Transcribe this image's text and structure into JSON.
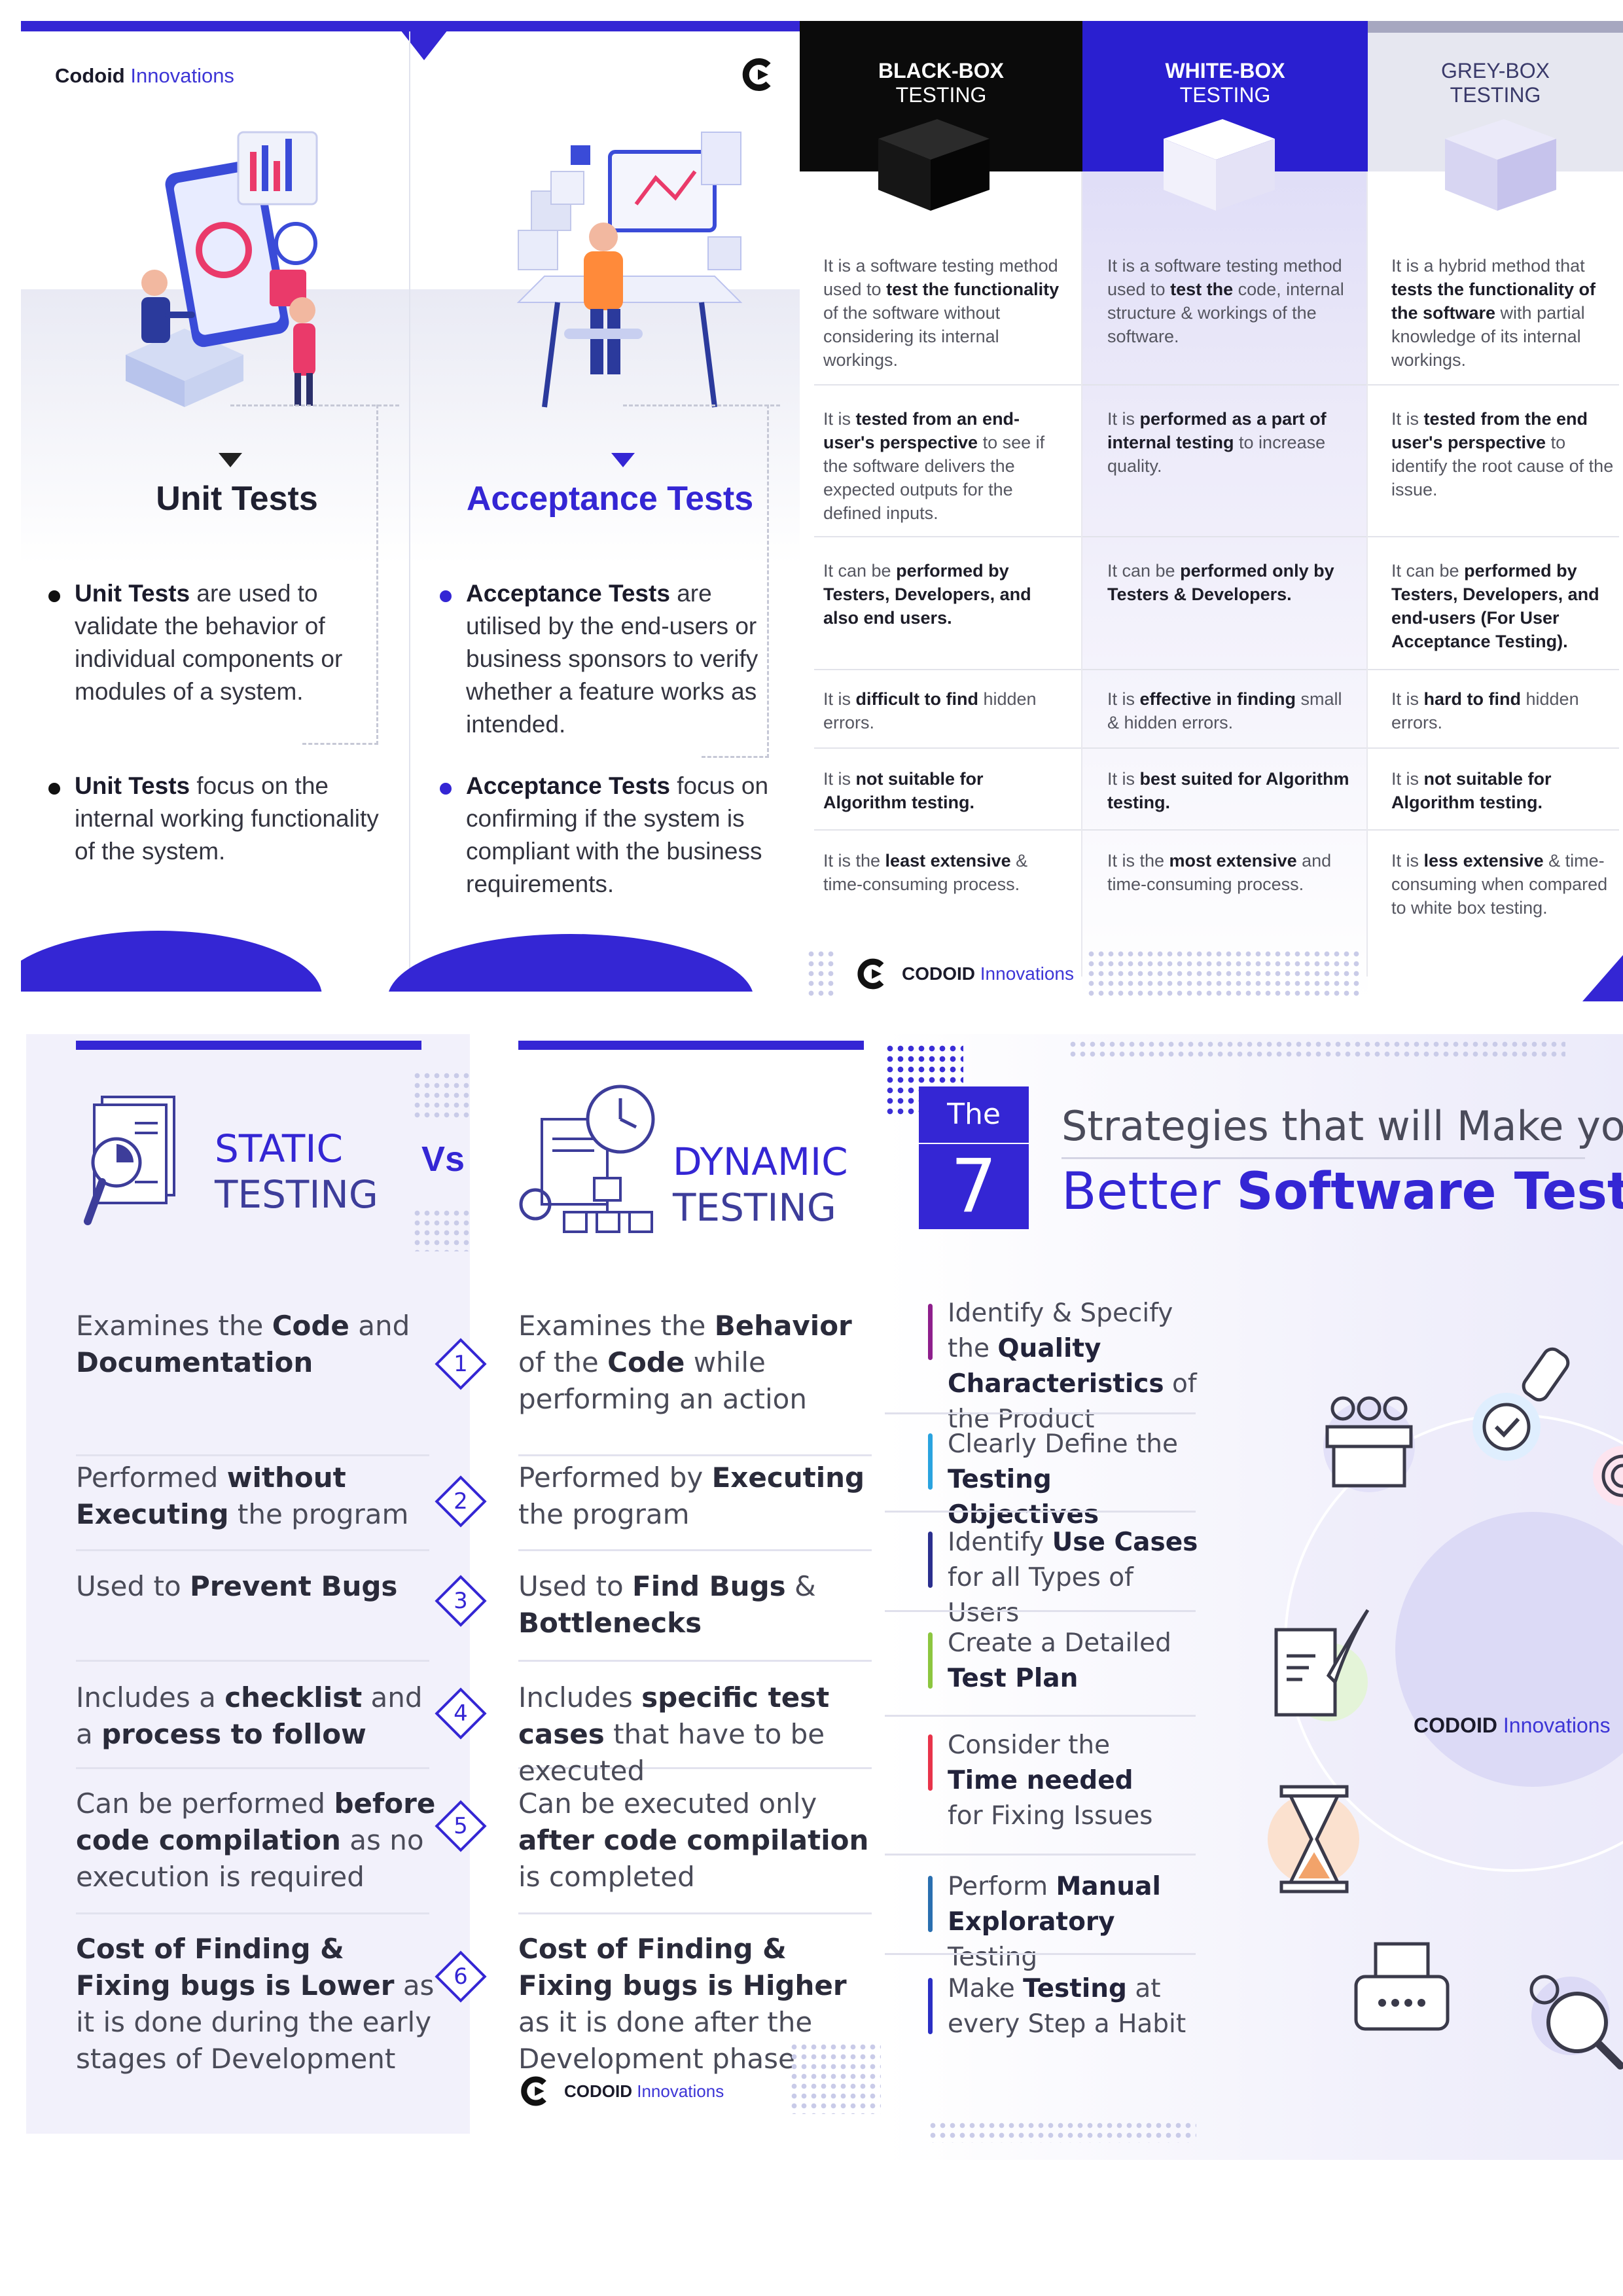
{
  "panel_unit_acceptance": {
    "logo_bold": "Codoid",
    "logo_light": "Innovations",
    "unit": {
      "heading": "Unit Tests",
      "bullet1_bold": "Unit Tests",
      "bullet1_rest": "are used to validate the behavior of individual components or modules of a system.",
      "bullet2_bold": "Unit Tests",
      "bullet2_rest": "focus on the internal working functionality of the system."
    },
    "acceptance": {
      "heading": "Acceptance Tests",
      "bullet1_bold": "Acceptance Tests",
      "bullet1_rest": "are utilised by the end-users or business sponsors to verify whether a feature works as intended.",
      "bullet2_bold": "Acceptance Tests",
      "bullet2_rest": "focus on confirming if the system is compliant with the business requirements."
    }
  },
  "panel_box_testing": {
    "columns": [
      {
        "title1": "BLACK-BOX",
        "title2": "TESTING"
      },
      {
        "title1": "WHITE-BOX",
        "title2": "TESTING"
      },
      {
        "title1": "GREY-BOX",
        "title2": "TESTING"
      }
    ],
    "black": {
      "r1_a": "It is a software testing method used to ",
      "r1_b": "test the functionality",
      "r1_c": " of the software without considering its internal workings.",
      "r2_a": "It is ",
      "r2_b": "tested from an end-user's perspective",
      "r2_c": " to see if the software delivers the expected outputs for the defined inputs.",
      "r3_a": "It can be ",
      "r3_b": "performed by Testers, Developers, and also end users.",
      "r3_c": "",
      "r4_a": "It is ",
      "r4_b": "difficult to find",
      "r4_c": " hidden errors.",
      "r5_a": "It is ",
      "r5_b": "not suitable for Algorithm testing.",
      "r5_c": "",
      "r6_a": "It is the ",
      "r6_b": "least extensive",
      "r6_c": " & time-consuming process."
    },
    "white": {
      "r1_a": "It is a software testing method used to ",
      "r1_b": "test the",
      "r1_c": " code, internal structure & workings of the software.",
      "r2_a": "It is ",
      "r2_b": "performed as a part of internal testing",
      "r2_c": " to increase quality.",
      "r3_a": "It can be ",
      "r3_b": "performed only by Testers & Developers.",
      "r3_c": "",
      "r4_a": "It is ",
      "r4_b": "effective in finding",
      "r4_c": " small & hidden errors.",
      "r5_a": "It is ",
      "r5_b": "best suited for Algorithm testing.",
      "r5_c": "",
      "r6_a": "It is the ",
      "r6_b": "most extensive",
      "r6_c": " and time-consuming process."
    },
    "grey": {
      "r1_a": "It is a hybrid method that ",
      "r1_b": "tests the functionality of the software",
      "r1_c": " with partial knowledge of its internal workings.",
      "r2_a": "It is ",
      "r2_b": "tested from the end user's perspective",
      "r2_c": " to identify the root cause of the issue.",
      "r3_a": "It can be ",
      "r3_b": "performed by Testers, Developers, and end-users (For User Acceptance Testing).",
      "r3_c": "",
      "r4_a": "It is ",
      "r4_b": "hard to find",
      "r4_c": " hidden errors.",
      "r5_a": "It is ",
      "r5_b": "not suitable for Algorithm testing.",
      "r5_c": "",
      "r6_a": "It is ",
      "r6_b": "less extensive",
      "r6_c": " & time-consuming when compared to white box testing."
    },
    "logo_bold": "CODOID",
    "logo_light": "Innovations"
  },
  "panel_static_dynamic": {
    "static_title1": "STATIC",
    "static_title2": "TESTING",
    "vs": "Vs",
    "dynamic_title1": "DYNAMIC",
    "dynamic_title2": "TESTING",
    "numbers": [
      "1",
      "2",
      "3",
      "4",
      "5",
      "6"
    ],
    "static": {
      "r1_a": "Examines the ",
      "r1_b": "Code",
      "r1_c": " and ",
      "r1_d": "Documentation",
      "r2_a": "Performed ",
      "r2_b": "without Executing",
      "r2_c": " the program",
      "r2_d": "",
      "r3_a": "Used to ",
      "r3_b": "Prevent Bugs",
      "r3_c": "",
      "r3_d": "",
      "r4_a": "Includes a ",
      "r4_b": "checklist",
      "r4_c": " and a ",
      "r4_d": "process to follow",
      "r5_a": "Can be performed ",
      "r5_b": "before",
      "r5_c": " code compilation",
      "r5_d": " as no execution is required",
      "r6_a": "Cost of Finding & Fixing",
      "r6_b": " bugs is ",
      "r6_c": "Lower",
      "r6_d": " as it is done during the early stages of Development"
    },
    "dynamic": {
      "r1_a": "Examines the ",
      "r1_b": "Behavior",
      "r1_c": " of the ",
      "r1_d": "Code",
      "r1_e": " while performing an action",
      "r2_a": "Performed by ",
      "r2_b": "Executing",
      "r2_c": " the program",
      "r2_d": "",
      "r2_e": "",
      "r3_a": "Used to ",
      "r3_b": "Find Bugs",
      "r3_c": " & ",
      "r3_d": "Bottlenecks",
      "r3_e": "",
      "r4_a": "Includes ",
      "r4_b": "specific test cases",
      "r4_c": " that have to be executed",
      "r4_d": "",
      "r4_e": "",
      "r5_a": "Can be executed only ",
      "r5_b": "after",
      "r5_c": " code compilation",
      "r5_d": " is completed",
      "r5_e": "",
      "r6_a": "Cost of Finding & Fixing",
      "r6_b": " bugs is ",
      "r6_c": "Higher",
      "r6_d": " as it is done after the Development phase",
      "r6_e": ""
    },
    "logo_bold": "CODOID",
    "logo_light": "Innovations"
  },
  "panel_strategies": {
    "the": "The",
    "number": "7",
    "title_line1": "Strategies that will Make you a",
    "title_line2_a": "Better ",
    "title_line2_b": "Software Tester",
    "items": [
      {
        "a": "Identify & Specify the ",
        "b": "Quality Characteristics",
        "c": " of the Product",
        "color": "#8e1f8c"
      },
      {
        "a": "Clearly Define the ",
        "b": "Testing Objectives",
        "c": "",
        "color": "#2aa3df"
      },
      {
        "a": "Identify ",
        "b": "Use Cases",
        "c": " for all Types of Users",
        "color": "#2b2f8e"
      },
      {
        "a": "Create a Detailed ",
        "b": "Test Plan",
        "c": "",
        "color": "#8cc63f"
      },
      {
        "a": "Consider the ",
        "b": "Time needed",
        "c": " for Fixing Issues",
        "color": "#e8334a"
      },
      {
        "a": "Perform ",
        "b": "Manual Exploratory",
        "c": " Testing",
        "color": "#2a6fb0"
      },
      {
        "a": "Make ",
        "b": "Testing",
        "c": " at every Step a Habit",
        "color": "#2b2fc4"
      }
    ],
    "logo_bold": "CODOID",
    "logo_light": "Innovations"
  },
  "colors": {
    "brand": "#3426d4",
    "black_head": "#0b0b0b",
    "white_head": "#2a1fd0",
    "grey_head": "#e6e7f0"
  }
}
